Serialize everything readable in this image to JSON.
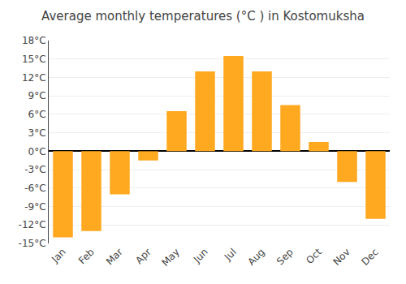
{
  "chart_data": {
    "type": "bar",
    "title": "Average monthly temperatures (°C ) in Kostomuksha",
    "categories": [
      "Jan",
      "Feb",
      "Mar",
      "Apr",
      "May",
      "Jun",
      "Jul",
      "Aug",
      "Sep",
      "Oct",
      "Nov",
      "Dec"
    ],
    "values": [
      -14,
      -13,
      -7,
      -1.5,
      6.5,
      13,
      15.5,
      13,
      7.5,
      1.5,
      -5,
      -11
    ],
    "color": "#FFA920",
    "ylim": [
      -15,
      18
    ],
    "yticks": [
      {
        "value": -15,
        "label": "-15°C"
      },
      {
        "value": -12,
        "label": "-12°C"
      },
      {
        "value": -9,
        "label": "-9°C"
      },
      {
        "value": -6,
        "label": "-6°C"
      },
      {
        "value": -3,
        "label": "-3°C"
      },
      {
        "value": 0,
        "label": "0°C"
      },
      {
        "value": 3,
        "label": "3°C"
      },
      {
        "value": 6,
        "label": "6°C"
      },
      {
        "value": 9,
        "label": "9°C"
      },
      {
        "value": 12,
        "label": "12°C"
      },
      {
        "value": 15,
        "label": "15°C"
      },
      {
        "value": 18,
        "label": "18°C"
      }
    ],
    "grid": true
  }
}
